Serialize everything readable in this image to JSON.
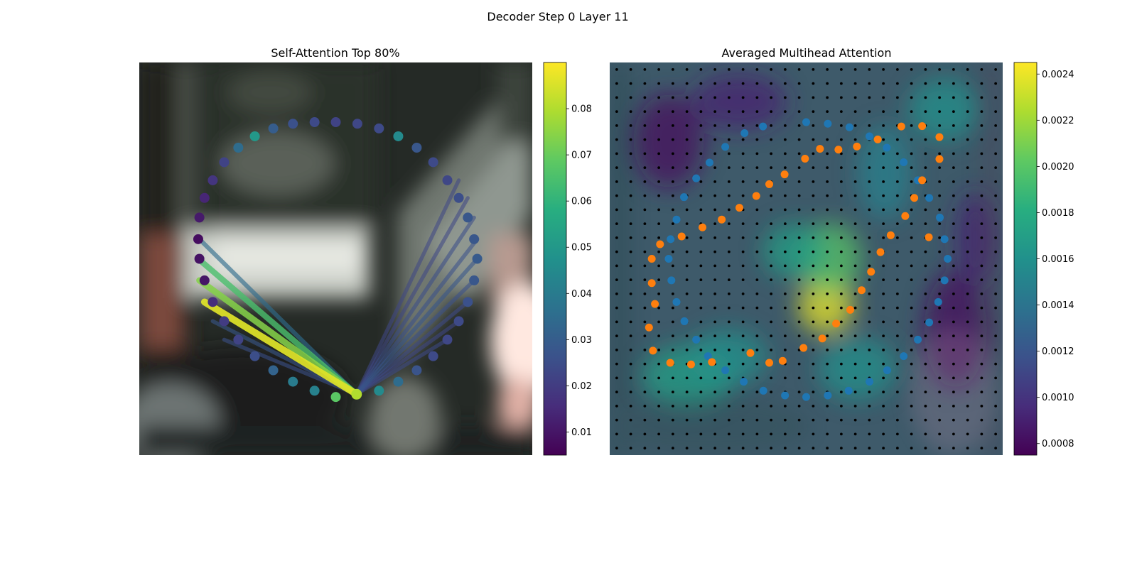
{
  "figure": {
    "suptitle": "Decoder Step 0 Layer 11"
  },
  "chart_data": [
    {
      "type": "scatter",
      "title": "Self-Attention Top 80%",
      "colormap": "viridis",
      "colorbar": {
        "vmin": 0.005,
        "vmax": 0.09,
        "ticks": [
          0.01,
          0.02,
          0.03,
          0.04,
          0.05,
          0.06,
          0.07,
          0.08
        ],
        "tick_labels": [
          "0.01",
          "0.02",
          "0.03",
          "0.04",
          "0.05",
          "0.06",
          "0.07",
          "0.08"
        ]
      },
      "background": "blurred camera image",
      "query_point": {
        "x": 0.553,
        "y": 0.845,
        "value": 0.08
      },
      "points": [
        {
          "x": 0.5,
          "y": 0.152,
          "value": 0.022
        },
        {
          "x": 0.555,
          "y": 0.156,
          "value": 0.023
        },
        {
          "x": 0.61,
          "y": 0.168,
          "value": 0.024
        },
        {
          "x": 0.659,
          "y": 0.188,
          "value": 0.045
        },
        {
          "x": 0.706,
          "y": 0.217,
          "value": 0.028
        },
        {
          "x": 0.748,
          "y": 0.254,
          "value": 0.024
        },
        {
          "x": 0.784,
          "y": 0.3,
          "value": 0.023
        },
        {
          "x": 0.813,
          "y": 0.345,
          "value": 0.025
        },
        {
          "x": 0.836,
          "y": 0.395,
          "value": 0.028
        },
        {
          "x": 0.852,
          "y": 0.45,
          "value": 0.028
        },
        {
          "x": 0.86,
          "y": 0.5,
          "value": 0.029
        },
        {
          "x": 0.852,
          "y": 0.555,
          "value": 0.028
        },
        {
          "x": 0.836,
          "y": 0.61,
          "value": 0.026
        },
        {
          "x": 0.813,
          "y": 0.659,
          "value": 0.024
        },
        {
          "x": 0.784,
          "y": 0.706,
          "value": 0.023
        },
        {
          "x": 0.748,
          "y": 0.748,
          "value": 0.024
        },
        {
          "x": 0.706,
          "y": 0.784,
          "value": 0.027
        },
        {
          "x": 0.659,
          "y": 0.813,
          "value": 0.035
        },
        {
          "x": 0.61,
          "y": 0.836,
          "value": 0.045
        },
        {
          "x": 0.5,
          "y": 0.852,
          "value": 0.068
        },
        {
          "x": 0.446,
          "y": 0.836,
          "value": 0.042
        },
        {
          "x": 0.391,
          "y": 0.813,
          "value": 0.04
        },
        {
          "x": 0.341,
          "y": 0.784,
          "value": 0.032
        },
        {
          "x": 0.294,
          "y": 0.748,
          "value": 0.025
        },
        {
          "x": 0.252,
          "y": 0.706,
          "value": 0.022
        },
        {
          "x": 0.216,
          "y": 0.659,
          "value": 0.02
        },
        {
          "x": 0.187,
          "y": 0.61,
          "value": 0.016
        },
        {
          "x": 0.166,
          "y": 0.555,
          "value": 0.01
        },
        {
          "x": 0.153,
          "y": 0.5,
          "value": 0.009
        },
        {
          "x": 0.15,
          "y": 0.45,
          "value": 0.008
        },
        {
          "x": 0.153,
          "y": 0.395,
          "value": 0.011
        },
        {
          "x": 0.166,
          "y": 0.345,
          "value": 0.014
        },
        {
          "x": 0.187,
          "y": 0.3,
          "value": 0.018
        },
        {
          "x": 0.216,
          "y": 0.254,
          "value": 0.022
        },
        {
          "x": 0.252,
          "y": 0.217,
          "value": 0.035
        },
        {
          "x": 0.294,
          "y": 0.188,
          "value": 0.05
        },
        {
          "x": 0.341,
          "y": 0.168,
          "value": 0.03
        },
        {
          "x": 0.391,
          "y": 0.156,
          "value": 0.026
        },
        {
          "x": 0.446,
          "y": 0.152,
          "value": 0.024
        }
      ],
      "lines": [
        {
          "x": 0.166,
          "y": 0.61,
          "value": 0.086
        },
        {
          "x": 0.153,
          "y": 0.555,
          "value": 0.074
        },
        {
          "x": 0.15,
          "y": 0.5,
          "value": 0.065
        },
        {
          "x": 0.153,
          "y": 0.45,
          "value": 0.035
        },
        {
          "x": 0.187,
          "y": 0.659,
          "value": 0.028
        },
        {
          "x": 0.216,
          "y": 0.706,
          "value": 0.026
        },
        {
          "x": 0.86,
          "y": 0.45,
          "value": 0.026
        },
        {
          "x": 0.86,
          "y": 0.5,
          "value": 0.028
        },
        {
          "x": 0.852,
          "y": 0.395,
          "value": 0.025
        },
        {
          "x": 0.852,
          "y": 0.555,
          "value": 0.026
        },
        {
          "x": 0.836,
          "y": 0.345,
          "value": 0.023
        },
        {
          "x": 0.836,
          "y": 0.61,
          "value": 0.024
        },
        {
          "x": 0.813,
          "y": 0.3,
          "value": 0.023
        },
        {
          "x": 0.813,
          "y": 0.659,
          "value": 0.023
        },
        {
          "x": 0.784,
          "y": 0.706,
          "value": 0.024
        }
      ]
    },
    {
      "type": "heatmap",
      "title": "Averaged Multihead Attention",
      "colormap": "viridis",
      "colorbar": {
        "vmin": 0.00075,
        "vmax": 0.00245,
        "ticks": [
          0.0008,
          0.001,
          0.0012,
          0.0014,
          0.0016,
          0.0018,
          0.002,
          0.0022,
          0.0024
        ],
        "tick_labels": [
          "0.0008",
          "0.0010",
          "0.0012",
          "0.0014",
          "0.0016",
          "0.0018",
          "0.0020",
          "0.0022",
          "0.0024"
        ]
      },
      "grid_points": {
        "nx": 28,
        "ny": 28,
        "color": "#000000"
      },
      "heat_blobs": [
        {
          "x": 0.55,
          "y": 0.62,
          "sx": 0.07,
          "sy": 0.07,
          "value": 0.0024
        },
        {
          "x": 0.56,
          "y": 0.5,
          "sx": 0.08,
          "sy": 0.09,
          "value": 0.002
        },
        {
          "x": 0.47,
          "y": 0.48,
          "sx": 0.08,
          "sy": 0.07,
          "value": 0.0017
        },
        {
          "x": 0.2,
          "y": 0.8,
          "sx": 0.12,
          "sy": 0.08,
          "value": 0.0017
        },
        {
          "x": 0.3,
          "y": 0.75,
          "sx": 0.1,
          "sy": 0.07,
          "value": 0.0016
        },
        {
          "x": 0.85,
          "y": 0.12,
          "sx": 0.09,
          "sy": 0.08,
          "value": 0.0016
        },
        {
          "x": 0.63,
          "y": 0.78,
          "sx": 0.1,
          "sy": 0.08,
          "value": 0.0016
        },
        {
          "x": 0.7,
          "y": 0.28,
          "sx": 0.07,
          "sy": 0.12,
          "value": 0.0015
        },
        {
          "x": 0.15,
          "y": 0.2,
          "sx": 0.09,
          "sy": 0.12,
          "value": 0.0008
        },
        {
          "x": 0.33,
          "y": 0.1,
          "sx": 0.12,
          "sy": 0.07,
          "value": 0.0009
        },
        {
          "x": 0.88,
          "y": 0.68,
          "sx": 0.08,
          "sy": 0.15,
          "value": 0.0008
        },
        {
          "x": 0.93,
          "y": 0.45,
          "sx": 0.05,
          "sy": 0.12,
          "value": 0.0009
        }
      ],
      "series": [
        {
          "color": "#1f77b4",
          "points": [
            {
              "x": 0.5,
              "y": 0.152
            },
            {
              "x": 0.555,
              "y": 0.156
            },
            {
              "x": 0.61,
              "y": 0.165
            },
            {
              "x": 0.661,
              "y": 0.188
            },
            {
              "x": 0.705,
              "y": 0.217
            },
            {
              "x": 0.748,
              "y": 0.254
            },
            {
              "x": 0.784,
              "y": 0.3
            },
            {
              "x": 0.813,
              "y": 0.345
            },
            {
              "x": 0.84,
              "y": 0.395
            },
            {
              "x": 0.852,
              "y": 0.45
            },
            {
              "x": 0.86,
              "y": 0.5
            },
            {
              "x": 0.852,
              "y": 0.555
            },
            {
              "x": 0.836,
              "y": 0.61
            },
            {
              "x": 0.813,
              "y": 0.662
            },
            {
              "x": 0.784,
              "y": 0.706
            },
            {
              "x": 0.748,
              "y": 0.748
            },
            {
              "x": 0.706,
              "y": 0.784
            },
            {
              "x": 0.661,
              "y": 0.813
            },
            {
              "x": 0.608,
              "y": 0.836
            },
            {
              "x": 0.555,
              "y": 0.848
            },
            {
              "x": 0.5,
              "y": 0.852
            },
            {
              "x": 0.446,
              "y": 0.848
            },
            {
              "x": 0.391,
              "y": 0.836
            },
            {
              "x": 0.341,
              "y": 0.813
            },
            {
              "x": 0.294,
              "y": 0.784
            },
            {
              "x": 0.25,
              "y": 0.748
            },
            {
              "x": 0.22,
              "y": 0.706
            },
            {
              "x": 0.19,
              "y": 0.659
            },
            {
              "x": 0.17,
              "y": 0.61
            },
            {
              "x": 0.157,
              "y": 0.555
            },
            {
              "x": 0.15,
              "y": 0.5
            },
            {
              "x": 0.155,
              "y": 0.45
            },
            {
              "x": 0.17,
              "y": 0.4
            },
            {
              "x": 0.189,
              "y": 0.343
            },
            {
              "x": 0.22,
              "y": 0.295
            },
            {
              "x": 0.254,
              "y": 0.255
            },
            {
              "x": 0.294,
              "y": 0.215
            },
            {
              "x": 0.343,
              "y": 0.18
            },
            {
              "x": 0.39,
              "y": 0.163
            }
          ]
        },
        {
          "color": "#ff7f0e",
          "points": [
            {
              "x": 0.742,
              "y": 0.163
            },
            {
              "x": 0.795,
              "y": 0.162
            },
            {
              "x": 0.839,
              "y": 0.19
            },
            {
              "x": 0.839,
              "y": 0.246
            },
            {
              "x": 0.795,
              "y": 0.3
            },
            {
              "x": 0.775,
              "y": 0.345
            },
            {
              "x": 0.752,
              "y": 0.391
            },
            {
              "x": 0.715,
              "y": 0.44
            },
            {
              "x": 0.689,
              "y": 0.483
            },
            {
              "x": 0.665,
              "y": 0.533
            },
            {
              "x": 0.641,
              "y": 0.58
            },
            {
              "x": 0.612,
              "y": 0.63
            },
            {
              "x": 0.576,
              "y": 0.665
            },
            {
              "x": 0.541,
              "y": 0.703
            },
            {
              "x": 0.493,
              "y": 0.727
            },
            {
              "x": 0.44,
              "y": 0.76
            },
            {
              "x": 0.406,
              "y": 0.765
            },
            {
              "x": 0.358,
              "y": 0.74
            },
            {
              "x": 0.26,
              "y": 0.763
            },
            {
              "x": 0.207,
              "y": 0.769
            },
            {
              "x": 0.154,
              "y": 0.765
            },
            {
              "x": 0.11,
              "y": 0.734
            },
            {
              "x": 0.1,
              "y": 0.675
            },
            {
              "x": 0.115,
              "y": 0.615
            },
            {
              "x": 0.107,
              "y": 0.562
            },
            {
              "x": 0.107,
              "y": 0.5
            },
            {
              "x": 0.128,
              "y": 0.463
            },
            {
              "x": 0.183,
              "y": 0.443
            },
            {
              "x": 0.236,
              "y": 0.42
            },
            {
              "x": 0.285,
              "y": 0.4
            },
            {
              "x": 0.33,
              "y": 0.37
            },
            {
              "x": 0.373,
              "y": 0.34
            },
            {
              "x": 0.406,
              "y": 0.31
            },
            {
              "x": 0.445,
              "y": 0.285
            },
            {
              "x": 0.497,
              "y": 0.245
            },
            {
              "x": 0.535,
              "y": 0.22
            },
            {
              "x": 0.582,
              "y": 0.222
            },
            {
              "x": 0.629,
              "y": 0.214
            },
            {
              "x": 0.682,
              "y": 0.196
            },
            {
              "x": 0.812,
              "y": 0.445
            }
          ]
        }
      ]
    }
  ]
}
